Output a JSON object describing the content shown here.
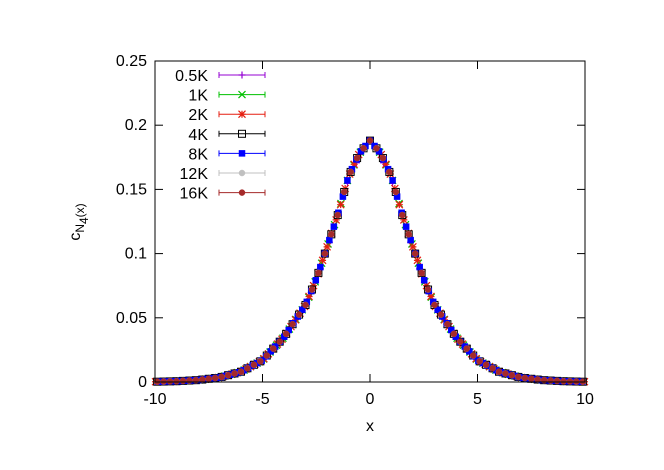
{
  "chart_data": {
    "type": "scatter",
    "xlabel": "x",
    "ylabel": {
      "main": "c",
      "sub": "N",
      "subsub": "4",
      "tail": "(x)"
    },
    "xlim": [
      -10,
      10
    ],
    "ylim": [
      0,
      0.25
    ],
    "xticks": [
      -10,
      -5,
      0,
      5,
      10
    ],
    "xtick_labels": [
      "-10",
      "-5",
      "0",
      "5",
      "10"
    ],
    "yticks": [
      0,
      0.05,
      0.1,
      0.15,
      0.2,
      0.25
    ],
    "ytick_labels": [
      "0",
      "0.05",
      "0.1",
      "0.15",
      "0.2",
      "0.25"
    ],
    "grid": false,
    "legend_position": "top-left",
    "series": [
      {
        "name": "0.5K",
        "marker": "plus",
        "color": "#9400d3",
        "step": 0.42,
        "offset": 0.21,
        "yscale": 0.985,
        "skip_center": true
      },
      {
        "name": "1K",
        "marker": "cross",
        "color": "#00c000",
        "step": 0.3,
        "offset": 0.15,
        "yscale": 1.0,
        "skip_center": true
      },
      {
        "name": "2K",
        "marker": "star",
        "color": "#e51e10",
        "step": 0.21,
        "offset": 0.105,
        "yscale": 1.0,
        "skip_center": true
      },
      {
        "name": "4K",
        "marker": "open-square",
        "color": "#000000",
        "step": 0.3,
        "offset": 0.0,
        "yscale": 1.0,
        "skip_center": false
      },
      {
        "name": "8K",
        "marker": "filled-square",
        "color": "#0000ff",
        "step": 0.21,
        "offset": 0.0,
        "yscale": 1.0,
        "skip_center": false
      },
      {
        "name": "12K",
        "marker": "filled-circle",
        "color": "#c0c0c0",
        "step": 0.3,
        "offset": 0.0,
        "yscale": 1.0,
        "skip_center": false
      },
      {
        "name": "16K",
        "marker": "filled-circle",
        "color": "#a52a2a",
        "step": 0.3,
        "offset": 0.0,
        "yscale": 1.0,
        "skip_center": false
      }
    ],
    "curve": {
      "x": [
        0,
        0.5,
        1,
        1.5,
        2,
        2.5,
        3,
        4,
        5,
        6,
        7,
        8,
        9,
        10
      ],
      "y": [
        0.188,
        0.178,
        0.16,
        0.13,
        0.105,
        0.08,
        0.06,
        0.035,
        0.017,
        0.008,
        0.0035,
        0.0015,
        0.0006,
        0.0002
      ]
    }
  }
}
